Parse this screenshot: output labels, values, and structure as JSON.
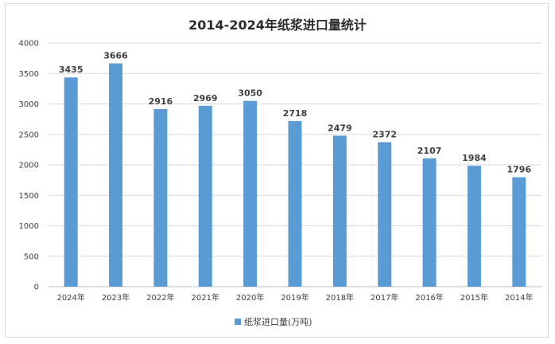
{
  "chart_data": {
    "type": "bar",
    "title": "2014-2024年纸浆进口量统计",
    "xlabel": "",
    "ylabel": "",
    "categories": [
      "2024年",
      "2023年",
      "2022年",
      "2021年",
      "2020年",
      "2019年",
      "2018年",
      "2017年",
      "2016年",
      "2015年",
      "2014年"
    ],
    "series": [
      {
        "name": "纸浆进口量(万吨)",
        "values": [
          3435,
          3666,
          2916,
          2969,
          3050,
          2718,
          2479,
          2372,
          2107,
          1984,
          1796
        ],
        "color": "#5b9bd5"
      }
    ],
    "ylim": [
      0,
      4000
    ],
    "yticks": [
      0,
      500,
      1000,
      1500,
      2000,
      2500,
      3000,
      3500,
      4000
    ],
    "grid": true,
    "legend": "bottom"
  }
}
